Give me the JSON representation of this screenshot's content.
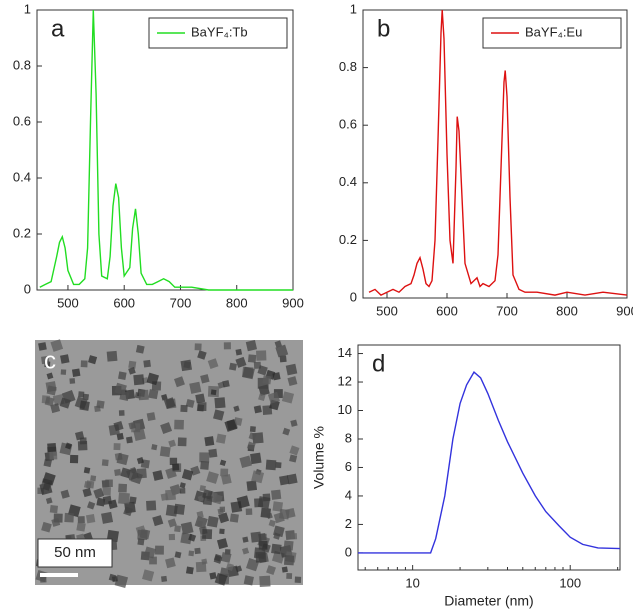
{
  "chart_data": [
    {
      "type": "line",
      "panel_label": "a",
      "x": [
        450,
        460,
        470,
        480,
        485,
        490,
        495,
        500,
        510,
        520,
        530,
        535,
        540,
        545,
        550,
        555,
        560,
        570,
        575,
        580,
        585,
        590,
        595,
        600,
        610,
        615,
        620,
        625,
        630,
        640,
        650,
        660,
        670,
        680,
        690,
        700,
        720,
        750,
        800,
        850,
        900
      ],
      "series": [
        {
          "name": "BaYF₄:Tb",
          "color": "#22dd22",
          "values": [
            0.01,
            0.02,
            0.03,
            0.12,
            0.17,
            0.19,
            0.15,
            0.07,
            0.02,
            0.02,
            0.04,
            0.15,
            0.6,
            1.0,
            0.7,
            0.2,
            0.05,
            0.04,
            0.12,
            0.3,
            0.38,
            0.33,
            0.15,
            0.05,
            0.08,
            0.22,
            0.29,
            0.2,
            0.06,
            0.02,
            0.02,
            0.03,
            0.04,
            0.03,
            0.01,
            0.01,
            0.01,
            0,
            0,
            0,
            0
          ]
        }
      ],
      "xlim": [
        445,
        900
      ],
      "xticks": [
        500,
        600,
        700,
        800,
        900
      ],
      "ylim": [
        0,
        1
      ],
      "yticks": [
        0,
        0.2,
        0.4,
        0.6,
        0.8,
        1
      ],
      "legend": "top-right"
    },
    {
      "type": "line",
      "panel_label": "b",
      "x": [
        470,
        480,
        490,
        500,
        510,
        520,
        530,
        540,
        545,
        550,
        555,
        560,
        565,
        570,
        575,
        580,
        585,
        590,
        592,
        595,
        600,
        605,
        610,
        615,
        617,
        620,
        625,
        630,
        640,
        650,
        655,
        660,
        670,
        680,
        685,
        690,
        695,
        697,
        700,
        705,
        710,
        720,
        730,
        750,
        780,
        800,
        830,
        860,
        900
      ],
      "series": [
        {
          "name": "BaYF₄:Eu",
          "color": "#dd1111",
          "values": [
            0.02,
            0.03,
            0.01,
            0.02,
            0.03,
            0.02,
            0.04,
            0.05,
            0.08,
            0.12,
            0.14,
            0.1,
            0.05,
            0.04,
            0.06,
            0.2,
            0.55,
            0.92,
            1.0,
            0.9,
            0.5,
            0.2,
            0.12,
            0.45,
            0.63,
            0.58,
            0.35,
            0.12,
            0.05,
            0.07,
            0.04,
            0.05,
            0.04,
            0.06,
            0.15,
            0.45,
            0.75,
            0.79,
            0.7,
            0.35,
            0.08,
            0.03,
            0.02,
            0.02,
            0.01,
            0.02,
            0.01,
            0.02,
            0.01
          ]
        }
      ],
      "xlim": [
        460,
        900
      ],
      "xticks": [
        500,
        600,
        700,
        800,
        900
      ],
      "ylim": [
        0,
        1
      ],
      "yticks": [
        0,
        0.2,
        0.4,
        0.6,
        0.8,
        1
      ],
      "legend": "top-right"
    },
    {
      "type": "line",
      "panel_label": "d",
      "xscale": "log",
      "x": [
        4.5,
        13,
        14,
        16,
        18,
        20,
        22,
        24.5,
        27,
        30,
        35,
        40,
        50,
        60,
        70,
        85,
        100,
        120,
        150,
        207
      ],
      "values": [
        0,
        0,
        1,
        4,
        8,
        10.5,
        11.8,
        12.7,
        12.3,
        11.2,
        9.3,
        7.8,
        5.6,
        4,
        2.9,
        1.9,
        1.1,
        0.6,
        0.35,
        0.3
      ],
      "color": "#3333dd",
      "xlabel": "Diameter (nm)",
      "ylabel": "Volume %",
      "xlim": [
        4.5,
        207
      ],
      "xticks": [
        10,
        100
      ],
      "ylim": [
        -1.2,
        14.6
      ],
      "yticks": [
        0,
        2,
        4,
        6,
        8,
        10,
        12,
        14
      ]
    }
  ],
  "image_panel": {
    "label": "c",
    "scale_label": "50 nm"
  }
}
